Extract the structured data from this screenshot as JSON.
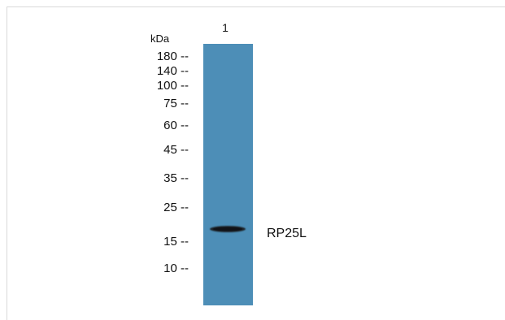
{
  "lane_label": "1",
  "unit_label": "kDa",
  "markers": [
    "180 --",
    "140 --",
    "100 --",
    "75 --",
    "60 --",
    "45 --",
    "35 --",
    "25 --",
    "15 --",
    "10 --"
  ],
  "band_label": "RP25L",
  "colors": {
    "lane": "#4d8eb7",
    "band": "#1f2228",
    "text": "#111111",
    "frame": "#d9d9d9"
  }
}
